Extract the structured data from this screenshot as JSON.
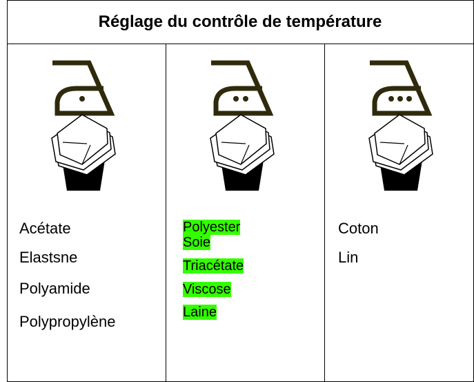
{
  "header": {
    "title": "Réglage du contrôle de température"
  },
  "columns": [
    {
      "items": [
        "Acétate",
        "Elastsne",
        "Polyamide",
        "Polypropylène"
      ]
    },
    {
      "items": [
        "Polyester",
        "Soie",
        "Triacétate",
        "Viscose",
        "Laine"
      ]
    },
    {
      "items": [
        "Coton",
        "Lin"
      ]
    }
  ]
}
